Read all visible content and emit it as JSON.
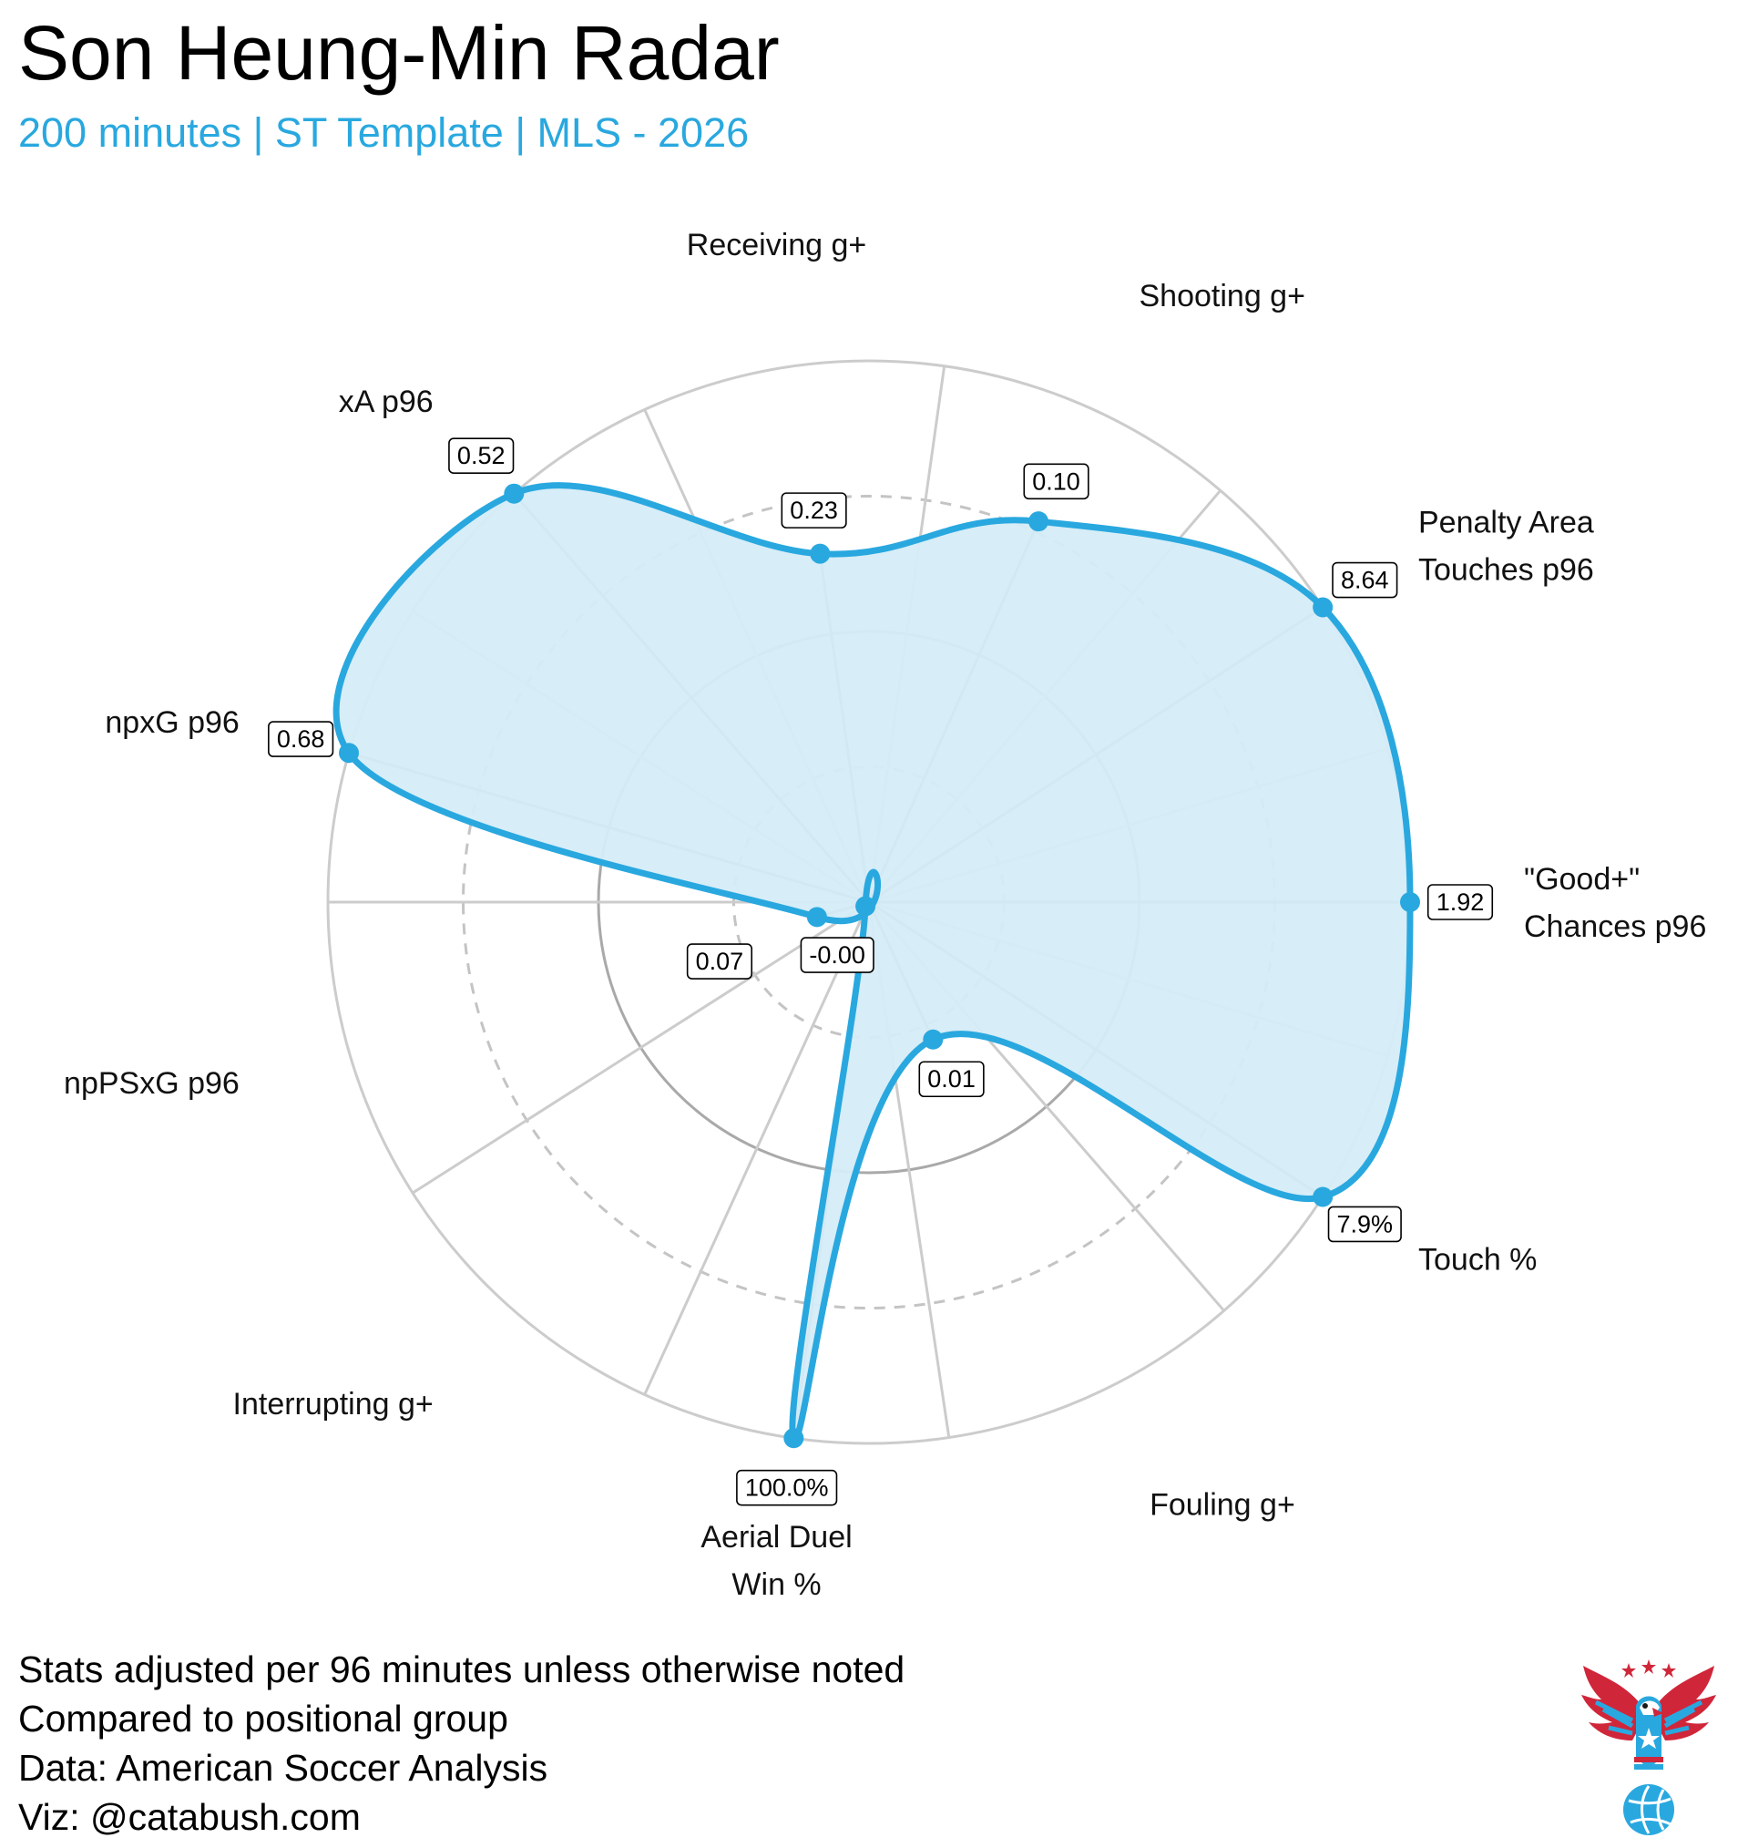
{
  "header": {
    "title": "Son Heung-Min Radar",
    "subtitle": "200 minutes | ST Template | MLS - 2026"
  },
  "colors": {
    "accent": "#29a8df",
    "fill": "#d5ecf7",
    "grid_solid": "#cccccc",
    "grid_dashed": "#c4c4c4",
    "inner_ring": "#a9a9a9",
    "spoke": "#9fb5c4"
  },
  "chart_data": {
    "type": "radar",
    "title": "Son Heung-Min Radar",
    "subtitle": "200 minutes | ST Template | MLS - 2026",
    "value_scale": "percentile",
    "rlim": [
      0,
      100
    ],
    "ring_gridlines": [
      25,
      50,
      75,
      100
    ],
    "metrics": [
      {
        "label_lines": [
          "\"Good+\"",
          "Chances p96"
        ],
        "angle_deg": 0,
        "percentile": 100,
        "value_label": "1.92"
      },
      {
        "label_lines": [
          "Penalty Area",
          "Touches p96"
        ],
        "angle_deg": 33,
        "percentile": 100,
        "value_label": "8.64"
      },
      {
        "label_lines": [
          "Shooting g+"
        ],
        "angle_deg": 66,
        "percentile": 77,
        "value_label": "0.10"
      },
      {
        "label_lines": [
          "Receiving g+"
        ],
        "angle_deg": 98,
        "percentile": 65,
        "value_label": "0.23"
      },
      {
        "label_lines": [
          "xA p96"
        ],
        "angle_deg": 131,
        "percentile": 100,
        "value_label": "0.52"
      },
      {
        "label_lines": [
          "npxG p96"
        ],
        "angle_deg": 164,
        "percentile": 100,
        "value_label": "0.68"
      },
      {
        "label_lines": [
          "npPSxG p96"
        ],
        "angle_deg": 196,
        "percentile": 10,
        "value_label": "0.07"
      },
      {
        "label_lines": [
          "Interrupting g+"
        ],
        "angle_deg": 229,
        "percentile": 1,
        "value_label": "-0.00"
      },
      {
        "label_lines": [
          "Aerial Duel",
          "Win %"
        ],
        "angle_deg": 262,
        "percentile": 100,
        "value_label": "100.0%"
      },
      {
        "label_lines": [
          "Fouling g+"
        ],
        "angle_deg": 295,
        "percentile": 28,
        "value_label": "0.01"
      },
      {
        "label_lines": [
          "Touch %"
        ],
        "angle_deg": 327,
        "percentile": 100,
        "value_label": "7.9%"
      }
    ]
  },
  "footnotes": [
    "Stats adjusted per 96 minutes unless otherwise noted",
    "Compared to positional group",
    "Data: American Soccer Analysis",
    "Viz: @catabush.com"
  ],
  "logo": {
    "icon": "eagle-soccer-ball-logo"
  }
}
